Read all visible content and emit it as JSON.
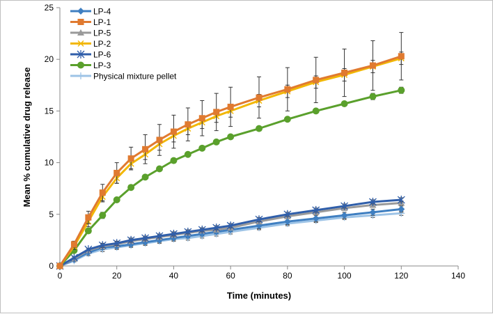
{
  "chart_data": {
    "type": "line",
    "title": "",
    "xlabel": "Time (minutes)",
    "ylabel": "Mean % cumulative drug release",
    "xlim": [
      0,
      140
    ],
    "ylim": [
      0,
      25
    ],
    "xticks": [
      0,
      20,
      40,
      60,
      80,
      100,
      120,
      140
    ],
    "yticks": [
      0,
      5,
      10,
      15,
      20,
      25
    ],
    "grid": false,
    "legend": "top-left",
    "x": [
      0,
      5,
      10,
      15,
      20,
      25,
      30,
      35,
      40,
      45,
      50,
      55,
      60,
      70,
      80,
      90,
      100,
      110,
      120
    ],
    "series": [
      {
        "name": "LP-4",
        "color": "#3f7fc1",
        "marker": "diamond",
        "values": [
          0,
          0.6,
          1.3,
          1.8,
          1.9,
          2.1,
          2.3,
          2.5,
          2.7,
          2.9,
          3.1,
          3.3,
          3.5,
          3.9,
          4.3,
          4.6,
          4.9,
          5.2,
          5.5
        ],
        "error": [
          0,
          0.1,
          0.1,
          0.2,
          0.2,
          0.2,
          0.2,
          0.2,
          0.2,
          0.2,
          0.2,
          0.2,
          0.2,
          0.3,
          0.3,
          0.3,
          0.3,
          0.3,
          0.3
        ]
      },
      {
        "name": "LP-1",
        "color": "#e07a30",
        "marker": "square",
        "values": [
          0,
          2.1,
          4.7,
          7.1,
          9.0,
          10.4,
          11.3,
          12.2,
          13.0,
          13.7,
          14.3,
          14.9,
          15.4,
          16.3,
          17.1,
          18.0,
          18.7,
          19.4,
          20.3
        ],
        "error": [
          0,
          0.3,
          0.6,
          0.8,
          1.0,
          1.1,
          1.4,
          1.5,
          1.6,
          1.6,
          1.7,
          1.8,
          1.9,
          2.0,
          2.1,
          2.2,
          2.3,
          2.4,
          2.3
        ]
      },
      {
        "name": "LP-5",
        "color": "#9a9a9a",
        "marker": "triangle",
        "values": [
          0,
          0.7,
          1.5,
          1.9,
          2.1,
          2.4,
          2.6,
          2.8,
          3.0,
          3.2,
          3.4,
          3.5,
          3.7,
          4.3,
          4.8,
          5.2,
          5.6,
          5.9,
          6.1
        ],
        "error": [
          0,
          0.1,
          0.2,
          0.2,
          0.2,
          0.2,
          0.2,
          0.2,
          0.2,
          0.2,
          0.2,
          0.2,
          0.2,
          0.2,
          0.2,
          0.2,
          0.2,
          0.2,
          0.2
        ]
      },
      {
        "name": "LP-2",
        "color": "#f2b705",
        "marker": "x",
        "values": [
          0,
          1.9,
          4.3,
          6.7,
          8.5,
          9.9,
          10.8,
          11.8,
          12.6,
          13.3,
          13.9,
          14.5,
          15.0,
          16.0,
          16.9,
          17.8,
          18.5,
          19.3,
          20.1
        ],
        "error": [
          0,
          0.3,
          0.5,
          0.5,
          0.5,
          0.5,
          0.5,
          0.6,
          0.6,
          0.6,
          0.6,
          0.6,
          0.6,
          0.6,
          0.6,
          0.6,
          0.6,
          0.6,
          0.6
        ]
      },
      {
        "name": "LP-6",
        "color": "#2f5eaa",
        "marker": "star",
        "values": [
          0,
          0.8,
          1.6,
          2.0,
          2.2,
          2.5,
          2.7,
          2.9,
          3.1,
          3.3,
          3.5,
          3.7,
          3.9,
          4.5,
          5.0,
          5.4,
          5.8,
          6.2,
          6.4
        ],
        "error": [
          0,
          0.1,
          0.1,
          0.2,
          0.2,
          0.2,
          0.2,
          0.2,
          0.2,
          0.2,
          0.2,
          0.2,
          0.2,
          0.2,
          0.2,
          0.2,
          0.2,
          0.2,
          0.2
        ]
      },
      {
        "name": "LP-3",
        "color": "#5aa02c",
        "marker": "circle",
        "values": [
          0,
          1.5,
          3.4,
          4.9,
          6.4,
          7.6,
          8.6,
          9.4,
          10.2,
          10.8,
          11.4,
          12.0,
          12.5,
          13.3,
          14.2,
          15.0,
          15.7,
          16.4,
          17.0
        ],
        "error": [
          0,
          0.1,
          0.2,
          0.3,
          0.2,
          0.2,
          0.2,
          0.2,
          0.2,
          0.2,
          0.2,
          0.2,
          0.2,
          0.2,
          0.2,
          0.2,
          0.2,
          0.3,
          0.3
        ]
      },
      {
        "name": "Physical mixture pellet",
        "color": "#9dc3e6",
        "marker": "plus",
        "values": [
          0,
          0.5,
          1.2,
          1.6,
          1.8,
          2.0,
          2.2,
          2.4,
          2.6,
          2.7,
          2.9,
          3.1,
          3.3,
          3.7,
          4.1,
          4.4,
          4.7,
          4.9,
          5.1
        ],
        "error": [
          0,
          0.1,
          0.2,
          0.2,
          0.2,
          0.2,
          0.2,
          0.2,
          0.2,
          0.2,
          0.2,
          0.2,
          0.2,
          0.2,
          0.2,
          0.2,
          0.2,
          0.2,
          0.2
        ]
      }
    ]
  }
}
